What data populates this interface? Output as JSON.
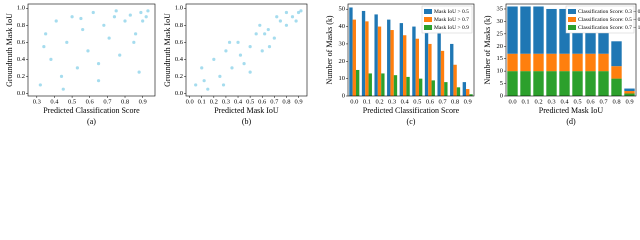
{
  "chart_data": [
    {
      "type": "scatter",
      "label": "(a)",
      "x_label": "Predicted Classification Score",
      "y_label": "Groundtruth Mask IoU",
      "color": "#8fd3ea",
      "x": [
        0.32,
        0.35,
        0.38,
        0.41,
        0.44,
        0.47,
        0.5,
        0.53,
        0.56,
        0.59,
        0.62,
        0.65,
        0.68,
        0.71,
        0.74,
        0.77,
        0.8,
        0.83,
        0.86,
        0.89,
        0.92,
        0.34,
        0.45,
        0.55,
        0.65,
        0.75,
        0.85,
        0.9,
        0.93,
        0.88
      ],
      "y": [
        0.1,
        0.7,
        0.4,
        0.85,
        0.2,
        0.6,
        0.9,
        0.3,
        0.75,
        0.5,
        0.95,
        0.15,
        0.8,
        0.65,
        0.9,
        0.45,
        0.85,
        0.92,
        0.7,
        0.95,
        0.9,
        0.55,
        0.05,
        0.88,
        0.35,
        0.97,
        0.6,
        0.85,
        0.97,
        0.25
      ],
      "xlim": [
        0.25,
        0.97
      ],
      "ylim": [
        -0.03,
        1.05
      ],
      "xticks": [
        0.3,
        0.4,
        0.5,
        0.6,
        0.7,
        0.8,
        0.9
      ],
      "yticks": [
        {
          "value": 0,
          "label": "0.0"
        },
        0.2,
        0.4,
        0.6,
        0.8,
        {
          "value": 1,
          "label": "1.0"
        }
      ]
    },
    {
      "type": "scatter",
      "label": "(b)",
      "x_label": "Predicted Mask IoU",
      "y_label": "Groundtruth Mask IoU",
      "color": "#8fd3ea",
      "x": [
        0.05,
        0.1,
        0.15,
        0.2,
        0.25,
        0.3,
        0.35,
        0.4,
        0.45,
        0.5,
        0.55,
        0.6,
        0.65,
        0.7,
        0.75,
        0.8,
        0.85,
        0.9,
        0.12,
        0.28,
        0.42,
        0.58,
        0.72,
        0.88,
        0.33,
        0.5,
        0.66,
        0.8,
        0.92,
        0.62
      ],
      "y": [
        0.1,
        0.3,
        0.05,
        0.4,
        0.2,
        0.5,
        0.3,
        0.6,
        0.35,
        0.55,
        0.7,
        0.5,
        0.75,
        0.65,
        0.85,
        0.8,
        0.9,
        0.95,
        0.15,
        0.1,
        0.45,
        0.8,
        0.9,
        0.85,
        0.6,
        0.25,
        0.55,
        0.95,
        0.97,
        0.7
      ],
      "xlim": [
        -0.03,
        0.97
      ],
      "ylim": [
        -0.03,
        1.05
      ],
      "xticks": [
        {
          "value": 0,
          "label": "0.0"
        },
        0.1,
        0.2,
        0.3,
        0.4,
        0.5,
        0.6,
        0.7,
        0.8,
        0.9
      ],
      "yticks": [
        {
          "value": 0,
          "label": "0.0"
        },
        0.2,
        0.4,
        0.6,
        0.8,
        {
          "value": 1,
          "label": "1.0"
        }
      ]
    },
    {
      "type": "bar",
      "label": "(c)",
      "x_label": "Predicted Classification Score",
      "y_label": "Number of Masks (k)",
      "stacked": false,
      "legend": "upper right",
      "categories": [
        "0.0",
        "0.1",
        "0.2",
        "0.3",
        "0.4",
        "0.5",
        "0.6",
        "0.7",
        "0.8",
        "0.9"
      ],
      "series": [
        {
          "name": "Mask IoU > 0.5",
          "color": "#1f77b4",
          "values": [
            51,
            49,
            47,
            44,
            42,
            40,
            38,
            36,
            30,
            8
          ]
        },
        {
          "name": "Mask IoU > 0.7",
          "color": "#ff7f0e",
          "values": [
            44,
            43,
            40,
            38,
            35,
            33,
            30,
            26,
            18,
            4
          ]
        },
        {
          "name": "Mask IoU > 0.9",
          "color": "#2ca02c",
          "values": [
            15,
            13,
            13,
            12,
            11,
            10,
            9,
            8,
            5,
            1
          ]
        }
      ],
      "ylim": [
        0,
        53
      ],
      "yticks": [
        0,
        10,
        20,
        30,
        40,
        50
      ]
    },
    {
      "type": "bar",
      "label": "(d)",
      "x_label": "Predicted Mask IoU",
      "y_label": "Number of Masks (k)",
      "stacked": true,
      "legend": "upper right",
      "categories": [
        "0.0",
        "0.1",
        "0.2",
        "0.3",
        "0.4",
        "0.5",
        "0.6",
        "0.7",
        "0.8",
        "0.9"
      ],
      "series": [
        {
          "name": "Classification Score: 0.7 ~ 1.0",
          "color": "#2ca02c",
          "values": [
            10,
            10,
            10,
            10,
            10,
            10,
            10,
            10,
            7,
            1
          ]
        },
        {
          "name": "Classification Score: 0.5 ~ 0.7",
          "color": "#ff7f0e",
          "values": [
            7,
            7,
            7,
            7,
            7,
            7,
            7,
            7,
            5,
            1
          ]
        },
        {
          "name": "Classification Score: 0.3 ~ 0.5",
          "color": "#1f77b4",
          "values": [
            19,
            19,
            19,
            18,
            18,
            17,
            16,
            15,
            10,
            1
          ]
        }
      ],
      "ylim": [
        0,
        37
      ],
      "yticks": [
        0,
        5,
        10,
        15,
        20,
        25,
        30,
        35
      ]
    }
  ]
}
